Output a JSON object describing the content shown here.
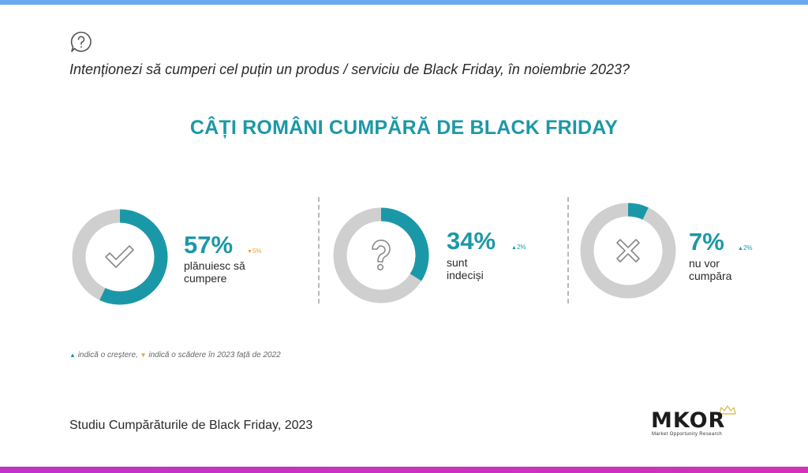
{
  "question": "Intenționezi să cumperi cel puțin un produs / serviciu de Black Friday, în noiembrie 2023?",
  "title": "CÂȚI ROMÂNI CUMPĂRĂ DE BLACK FRIDAY",
  "colors": {
    "accent": "#1b98a8",
    "track": "#cfcfcf",
    "up": "#1b98a8",
    "down": "#e3a23a"
  },
  "chart_data": {
    "type": "pie",
    "unit": "%",
    "items": [
      {
        "label": "plănuiesc să\ncumpere",
        "value": 57,
        "value_text": "57%",
        "delta_text": "5%",
        "delta_dir": "down",
        "icon": "check-icon"
      },
      {
        "label": "sunt\nindeciși",
        "value": 34,
        "value_text": "34%",
        "delta_text": "2%",
        "delta_dir": "up",
        "icon": "question-icon"
      },
      {
        "label": "nu vor\ncumpăra",
        "value": 7,
        "value_text": "7%",
        "delta_text": "2%",
        "delta_dir": "up",
        "icon": "cross-icon"
      }
    ]
  },
  "legend": {
    "up_text": "indică o creștere,",
    "down_text": "indică o scădere în 2023 față de 2022"
  },
  "source": "Studiu Cumpărăturile de Black Friday, 2023",
  "logo": {
    "name": "MKOR",
    "tagline": "Market Opportunity Research"
  }
}
